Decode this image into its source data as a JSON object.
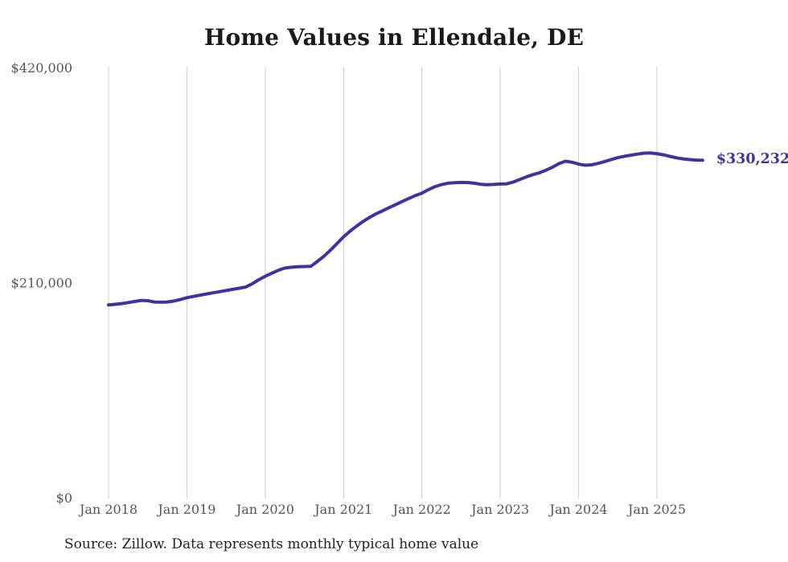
{
  "title": "Home Values in Ellendale, DE",
  "source_note": "Source: Zillow. Data represents monthly typical home value",
  "end_value_label": "$330,232",
  "colors": {
    "line": "#3b35a0",
    "grid": "#cccccc",
    "title_text": "#1a1a1a",
    "tick_text": "#555555",
    "source_text": "#222222",
    "background": "#ffffff"
  },
  "chart_data": {
    "type": "line",
    "title": "Home Values in Ellendale, DE",
    "series_name": "Monthly typical home value (USD)",
    "x_start": "2018-01",
    "x_end": "2025-08",
    "frequency": "monthly",
    "x_tick_labels": [
      "Jan 2018",
      "Jan 2019",
      "Jan 2020",
      "Jan 2021",
      "Jan 2022",
      "Jan 2023",
      "Jan 2024",
      "Jan 2025"
    ],
    "y_ticks": [
      {
        "label": "$0",
        "value": 0
      },
      {
        "label": "$210,000",
        "value": 210000
      },
      {
        "label": "$420,000",
        "value": 420000
      }
    ],
    "ylim": [
      0,
      420000
    ],
    "grid": "vertical-only",
    "legend": "none",
    "end_value": 330232,
    "values": [
      189000,
      189600,
      190300,
      191200,
      192300,
      193400,
      193100,
      191900,
      191600,
      191900,
      192800,
      194300,
      196000,
      197300,
      198500,
      199700,
      200800,
      201900,
      203000,
      204200,
      205300,
      206500,
      209500,
      213500,
      217000,
      220000,
      222800,
      225000,
      225800,
      226300,
      226500,
      226700,
      231500,
      236500,
      242500,
      249000,
      255500,
      261000,
      266000,
      270500,
      274500,
      278000,
      281000,
      284000,
      287000,
      290000,
      293000,
      295800,
      298200,
      301500,
      304500,
      306500,
      307800,
      308400,
      308600,
      308500,
      307800,
      306800,
      306400,
      306600,
      307000,
      307300,
      309000,
      311500,
      314000,
      316200,
      318000,
      320500,
      323500,
      327000,
      329300,
      328300,
      326500,
      325400,
      325800,
      327200,
      329000,
      331000,
      332800,
      334100,
      335200,
      336200,
      337200,
      337300,
      336700,
      335500,
      334000,
      332600,
      331600,
      330900,
      330400,
      330232
    ]
  }
}
